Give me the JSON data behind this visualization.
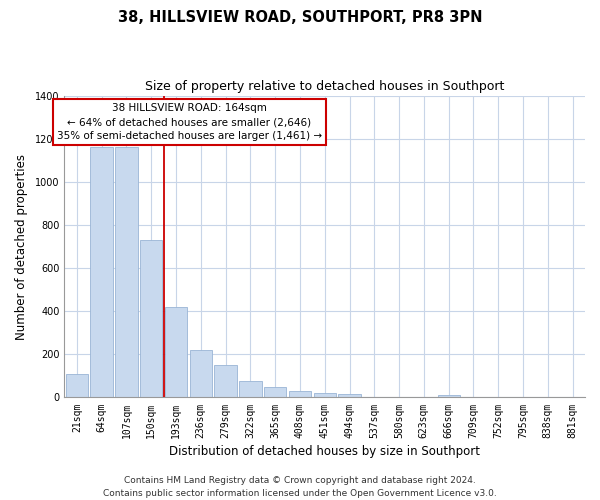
{
  "title": "38, HILLSVIEW ROAD, SOUTHPORT, PR8 3PN",
  "subtitle": "Size of property relative to detached houses in Southport",
  "xlabel": "Distribution of detached houses by size in Southport",
  "ylabel": "Number of detached properties",
  "bar_labels": [
    "21sqm",
    "64sqm",
    "107sqm",
    "150sqm",
    "193sqm",
    "236sqm",
    "279sqm",
    "322sqm",
    "365sqm",
    "408sqm",
    "451sqm",
    "494sqm",
    "537sqm",
    "580sqm",
    "623sqm",
    "666sqm",
    "709sqm",
    "752sqm",
    "795sqm",
    "838sqm",
    "881sqm"
  ],
  "bar_values": [
    108,
    1160,
    1160,
    730,
    420,
    220,
    150,
    75,
    50,
    32,
    20,
    15,
    0,
    0,
    0,
    10,
    0,
    0,
    0,
    0,
    0
  ],
  "bar_color": "#c8d9ee",
  "bar_edge_color": "#9ab5d5",
  "vline_x": 3.5,
  "vline_color": "#cc0000",
  "annotation_title": "38 HILLSVIEW ROAD: 164sqm",
  "annotation_line1": "← 64% of detached houses are smaller (2,646)",
  "annotation_line2": "35% of semi-detached houses are larger (1,461) →",
  "annotation_box_color": "white",
  "annotation_box_edge_color": "#cc0000",
  "ylim": [
    0,
    1400
  ],
  "yticks": [
    0,
    200,
    400,
    600,
    800,
    1000,
    1200,
    1400
  ],
  "footer_line1": "Contains HM Land Registry data © Crown copyright and database right 2024.",
  "footer_line2": "Contains public sector information licensed under the Open Government Licence v3.0.",
  "bg_color": "#ffffff",
  "plot_bg_color": "#ffffff",
  "grid_color": "#c8d5e8",
  "title_fontsize": 10.5,
  "subtitle_fontsize": 9,
  "axis_label_fontsize": 8.5,
  "tick_fontsize": 7,
  "annotation_fontsize": 7.5,
  "footer_fontsize": 6.5
}
